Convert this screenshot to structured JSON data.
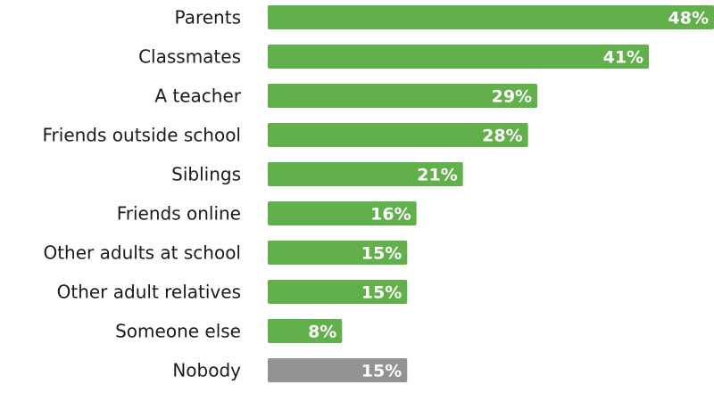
{
  "chart_data": {
    "type": "bar",
    "orientation": "horizontal",
    "categories": [
      "Parents",
      "Classmates",
      "A teacher",
      "Friends outside school",
      "Siblings",
      "Friends online",
      "Other adults at school",
      "Other adult relatives",
      "Someone else",
      "Nobody"
    ],
    "values": [
      48,
      41,
      29,
      28,
      21,
      16,
      15,
      15,
      8,
      15
    ],
    "value_labels": [
      "48%",
      "41%",
      "29%",
      "28%",
      "21%",
      "16%",
      "15%",
      "15%",
      "8%",
      "15%"
    ],
    "bar_colors": [
      "#62b04b",
      "#62b04b",
      "#62b04b",
      "#62b04b",
      "#62b04b",
      "#62b04b",
      "#62b04b",
      "#62b04b",
      "#62b04b",
      "#939393"
    ],
    "title": "",
    "xlabel": "",
    "ylabel": "",
    "xlim": [
      0,
      48
    ],
    "grid": false,
    "legend": "none"
  }
}
